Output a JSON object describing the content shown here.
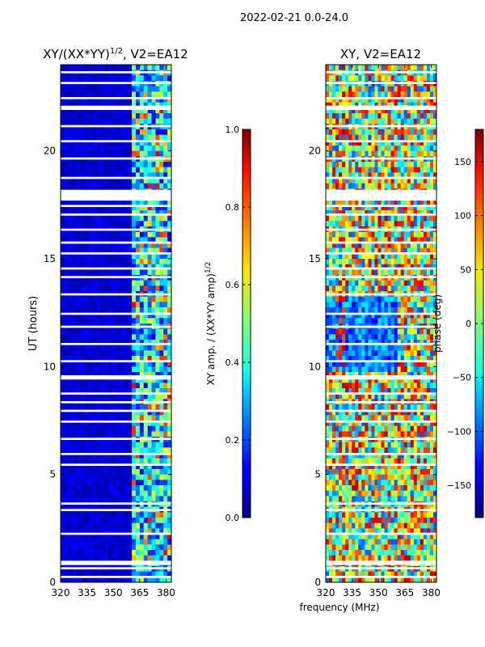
{
  "figure": {
    "suptitle": "2022-02-21 0.0-24.0",
    "shared_xlabel": "frequency (MHz)"
  },
  "chart_data": [
    {
      "type": "heatmap",
      "title_main": "XY/(XX*YY)",
      "title_exp": "1/2",
      "title_suffix": ", V2=EA12",
      "ylabel": "UT (hours)",
      "xlim": [
        320,
        383
      ],
      "ylim": [
        0,
        24
      ],
      "xticks": [
        "320",
        "335",
        "350",
        "365",
        "380"
      ],
      "xtick_values": [
        320,
        335,
        350,
        365,
        380
      ],
      "yticks": [
        "0",
        "5",
        "10",
        "15",
        "20"
      ],
      "ytick_values": [
        0,
        5,
        10,
        15,
        20
      ],
      "colorbar": {
        "label_main": "XY amp. / (XX*YY amp)",
        "label_exp": "1/2",
        "range": [
          0.0,
          1.0
        ],
        "ticks": [
          "0.0",
          "0.2",
          "0.4",
          "0.6",
          "0.8",
          "1.0"
        ],
        "tick_values": [
          0.0,
          0.2,
          0.4,
          0.6,
          0.8,
          1.0
        ],
        "colormap": "jet"
      },
      "bright_band_mhz": [
        360,
        383
      ],
      "flagged_hours": [
        [
          0.2,
          0.3
        ],
        [
          0.6,
          0.7
        ],
        [
          0.8,
          1.0
        ],
        [
          2.2,
          2.3
        ],
        [
          3.3,
          3.4
        ],
        [
          3.6,
          3.7
        ],
        [
          5.4,
          5.5
        ],
        [
          5.9,
          6.0
        ],
        [
          6.6,
          6.7
        ],
        [
          7.4,
          7.5
        ],
        [
          7.9,
          8.0
        ],
        [
          8.3,
          8.4
        ],
        [
          8.7,
          8.8
        ],
        [
          9.4,
          9.6
        ],
        [
          10.2,
          10.3
        ],
        [
          11.0,
          11.1
        ],
        [
          11.8,
          11.9
        ],
        [
          12.4,
          12.5
        ],
        [
          13.3,
          13.4
        ],
        [
          14.1,
          14.2
        ],
        [
          14.5,
          14.6
        ],
        [
          15.2,
          15.3
        ],
        [
          15.7,
          15.8
        ],
        [
          16.3,
          16.4
        ],
        [
          17.0,
          17.1
        ],
        [
          17.4,
          17.5
        ],
        [
          17.7,
          18.2
        ],
        [
          18.7,
          18.8
        ],
        [
          19.6,
          19.7
        ],
        [
          20.4,
          20.5
        ],
        [
          21.1,
          21.2
        ],
        [
          21.9,
          22.1
        ],
        [
          22.4,
          22.5
        ],
        [
          23.1,
          23.2
        ],
        [
          23.6,
          23.7
        ]
      ]
    },
    {
      "type": "heatmap",
      "title": "XY, V2=EA12",
      "xlim": [
        320,
        383
      ],
      "ylim": [
        0,
        24
      ],
      "xticks": [
        "320",
        "335",
        "350",
        "365",
        "380"
      ],
      "xtick_values": [
        320,
        335,
        350,
        365,
        380
      ],
      "yticks": [
        "0",
        "5",
        "10",
        "15",
        "20"
      ],
      "ytick_values": [
        0,
        5,
        10,
        15,
        20
      ],
      "colorbar": {
        "label": "phase (deg)",
        "range": [
          -180,
          180
        ],
        "ticks": [
          "−150",
          "−100",
          "−50",
          "0",
          "50",
          "100",
          "150"
        ],
        "tick_values": [
          -150,
          -100,
          -50,
          0,
          50,
          100,
          150
        ],
        "colormap": "jet"
      },
      "flagged_hours": [
        [
          0.2,
          0.3
        ],
        [
          0.6,
          0.7
        ],
        [
          0.8,
          1.0
        ],
        [
          2.2,
          2.3
        ],
        [
          3.3,
          3.4
        ],
        [
          3.6,
          3.7
        ],
        [
          5.4,
          5.5
        ],
        [
          5.9,
          6.0
        ],
        [
          6.6,
          6.7
        ],
        [
          7.4,
          7.5
        ],
        [
          7.9,
          8.0
        ],
        [
          8.3,
          8.4
        ],
        [
          8.7,
          8.8
        ],
        [
          9.4,
          9.6
        ],
        [
          10.2,
          10.3
        ],
        [
          11.0,
          11.1
        ],
        [
          11.8,
          11.9
        ],
        [
          12.4,
          12.5
        ],
        [
          13.3,
          13.4
        ],
        [
          14.1,
          14.2
        ],
        [
          14.5,
          14.6
        ],
        [
          15.2,
          15.3
        ],
        [
          15.7,
          15.8
        ],
        [
          16.3,
          16.4
        ],
        [
          17.0,
          17.1
        ],
        [
          17.4,
          17.5
        ],
        [
          17.7,
          18.2
        ],
        [
          18.7,
          18.8
        ],
        [
          19.6,
          19.7
        ],
        [
          20.4,
          20.5
        ],
        [
          21.1,
          21.2
        ],
        [
          21.9,
          22.1
        ],
        [
          22.4,
          22.5
        ],
        [
          23.1,
          23.2
        ],
        [
          23.6,
          23.7
        ]
      ]
    }
  ]
}
